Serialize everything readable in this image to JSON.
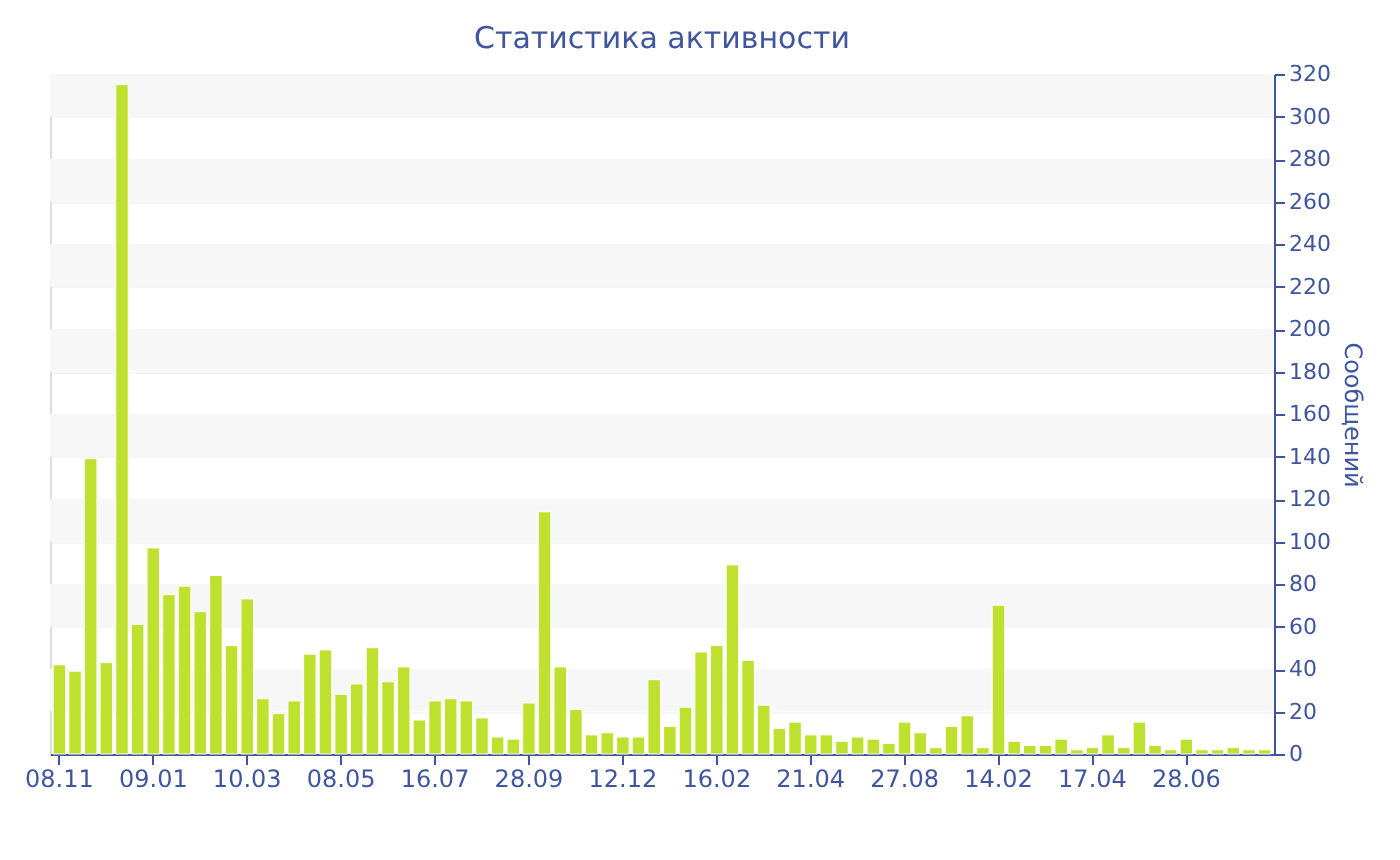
{
  "chart_data": {
    "type": "bar",
    "title": "Статистика активности",
    "ylabel": "Сообщений",
    "color": "#bde12e",
    "categories": [
      "08.11",
      null,
      null,
      null,
      null,
      null,
      "09.01",
      null,
      null,
      null,
      null,
      null,
      "10.03",
      null,
      null,
      null,
      null,
      null,
      "08.05",
      null,
      null,
      null,
      null,
      null,
      "16.07",
      null,
      null,
      null,
      null,
      null,
      "28.09",
      null,
      null,
      null,
      null,
      null,
      "12.12",
      null,
      null,
      null,
      null,
      null,
      "16.02",
      null,
      null,
      null,
      null,
      null,
      "21.04",
      null,
      null,
      null,
      null,
      null,
      "27.08",
      null,
      null,
      null,
      null,
      null,
      "14.02",
      null,
      null,
      null,
      null,
      null,
      "17.04",
      null,
      null,
      null,
      null,
      null,
      "28.06",
      null,
      null,
      null,
      null,
      null
    ],
    "values": [
      42,
      39,
      139,
      43,
      315,
      61,
      97,
      75,
      79,
      67,
      84,
      51,
      73,
      26,
      19,
      25,
      47,
      49,
      28,
      33,
      50,
      34,
      41,
      16,
      25,
      26,
      25,
      17,
      8,
      7,
      24,
      114,
      41,
      21,
      9,
      10,
      8,
      8,
      35,
      13,
      22,
      48,
      51,
      89,
      44,
      23,
      12,
      15,
      9,
      9,
      6,
      8,
      7,
      5,
      15,
      10,
      3,
      13,
      18,
      3,
      70,
      6,
      4,
      4,
      7,
      2,
      3,
      9,
      3,
      15,
      4,
      2,
      7,
      2,
      2,
      3,
      2,
      2
    ],
    "ylim": [
      0,
      320
    ],
    "yticks": [
      0,
      20,
      40,
      60,
      80,
      100,
      120,
      140,
      160,
      180,
      200,
      220,
      240,
      260,
      280,
      300,
      320
    ],
    "grid": "y"
  }
}
